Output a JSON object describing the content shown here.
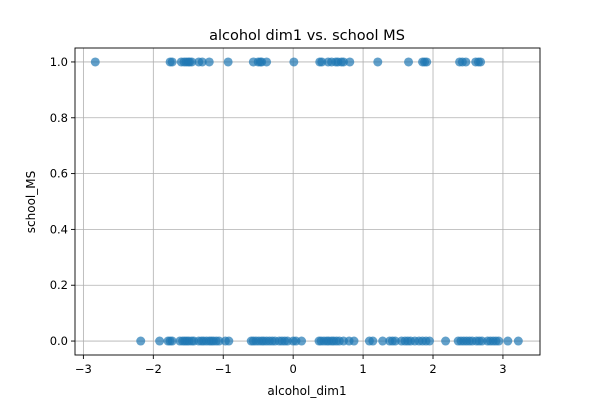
{
  "chart_data": {
    "type": "scatter",
    "title": "alcohol dim1 vs. school MS",
    "xlabel": "alcohol_dim1",
    "ylabel": "school_MS",
    "xlim": [
      -3.12,
      3.53
    ],
    "ylim": [
      -0.05,
      1.05
    ],
    "xticks": [
      -3,
      -2,
      -1,
      0,
      1,
      2,
      3
    ],
    "yticks": [
      0.0,
      0.2,
      0.4,
      0.6,
      0.8,
      1.0
    ],
    "ytick_labels": [
      "0.0",
      "0.2",
      "0.4",
      "0.6",
      "0.8",
      "1.0"
    ],
    "grid": true,
    "marker_color": "#1f77b4",
    "marker_alpha": 0.7,
    "series": [
      {
        "x": [
          -2.83,
          -1.76,
          -1.73,
          -1.6,
          -1.56,
          -1.53,
          -1.5,
          -1.48,
          -1.45,
          -1.35,
          -1.3,
          -1.2,
          -0.93,
          -0.57,
          -0.5,
          -0.47,
          -0.45,
          -0.38,
          0.01,
          0.38,
          0.41,
          0.5,
          0.55,
          0.61,
          0.64,
          0.69,
          0.72,
          0.81,
          1.21,
          1.65,
          1.85,
          1.88,
          1.91,
          2.38,
          2.42,
          2.47,
          2.61,
          2.65,
          2.68
        ],
        "y": [
          1,
          1,
          1,
          1,
          1,
          1,
          1,
          1,
          1,
          1,
          1,
          1,
          1,
          1,
          1,
          1,
          1,
          1,
          1,
          1,
          1,
          1,
          1,
          1,
          1,
          1,
          1,
          1,
          1,
          1,
          1,
          1,
          1,
          1,
          1,
          1,
          1,
          1,
          1
        ]
      },
      {
        "x": [
          -2.18,
          -1.91,
          -1.79,
          -1.76,
          -1.73,
          -1.62,
          -1.58,
          -1.55,
          -1.52,
          -1.49,
          -1.45,
          -1.42,
          -1.35,
          -1.31,
          -1.28,
          -1.24,
          -1.2,
          -1.17,
          -1.14,
          -1.1,
          -1.06,
          -0.97,
          -0.92,
          -0.6,
          -0.57,
          -0.53,
          -0.49,
          -0.45,
          -0.42,
          -0.38,
          -0.34,
          -0.3,
          -0.26,
          -0.2,
          -0.16,
          -0.12,
          -0.08,
          0.0,
          0.04,
          0.12,
          0.37,
          0.4,
          0.44,
          0.48,
          0.51,
          0.55,
          0.58,
          0.62,
          0.66,
          0.72,
          0.8,
          0.87,
          1.09,
          1.14,
          1.28,
          1.38,
          1.42,
          1.46,
          1.55,
          1.6,
          1.64,
          1.68,
          1.74,
          1.8,
          1.85,
          1.9,
          1.95,
          2.18,
          2.36,
          2.4,
          2.44,
          2.48,
          2.52,
          2.56,
          2.62,
          2.66,
          2.7,
          2.78,
          2.82,
          2.86,
          2.9,
          2.94,
          3.07,
          3.22
        ],
        "y": [
          0,
          0,
          0,
          0,
          0,
          0,
          0,
          0,
          0,
          0,
          0,
          0,
          0,
          0,
          0,
          0,
          0,
          0,
          0,
          0,
          0,
          0,
          0,
          0,
          0,
          0,
          0,
          0,
          0,
          0,
          0,
          0,
          0,
          0,
          0,
          0,
          0,
          0,
          0,
          0,
          0,
          0,
          0,
          0,
          0,
          0,
          0,
          0,
          0,
          0,
          0,
          0,
          0,
          0,
          0,
          0,
          0,
          0,
          0,
          0,
          0,
          0,
          0,
          0,
          0,
          0,
          0,
          0,
          0,
          0,
          0,
          0,
          0,
          0,
          0,
          0,
          0,
          0,
          0,
          0,
          0,
          0,
          0,
          0
        ]
      }
    ]
  }
}
